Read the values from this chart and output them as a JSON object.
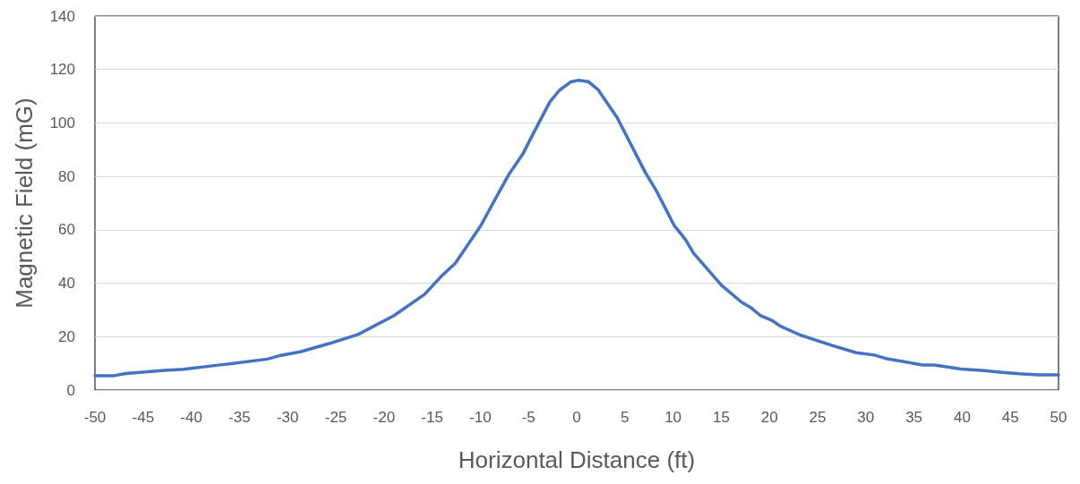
{
  "chart_data": {
    "type": "line",
    "xlabel": "Horizontal Distance (ft)",
    "ylabel": "Magnetic Field (mG)",
    "x": [
      -50,
      -48,
      -46.8,
      -44.8,
      -42.8,
      -40.8,
      -36.8,
      -32.1,
      -30.7,
      -28.7,
      -25.7,
      -22.7,
      -19,
      -15.8,
      -14,
      -12.6,
      -10,
      -8,
      -7,
      -5.6,
      -4.6,
      -2.8,
      -1.8,
      -0.6,
      0.2,
      1.2,
      2.2,
      4.2,
      7.1,
      8.3,
      10.1,
      11.3,
      12.1,
      15,
      17.1,
      18.1,
      19.1,
      20.2,
      21.2,
      23.2,
      26.5,
      29,
      30.9,
      32.2,
      35.9,
      37.1,
      39.9,
      42.3,
      43.9,
      45.9,
      47.9,
      50
    ],
    "series": [
      {
        "color": "#4472c4",
        "values": [
          5.4,
          5.4,
          6.2,
          6.8,
          7.4,
          7.8,
          9.5,
          11.6,
          13,
          14.3,
          17.4,
          20.8,
          27.8,
          35.8,
          42.8,
          47.5,
          61.3,
          74.5,
          81,
          88.3,
          95.4,
          107.8,
          112.2,
          115.4,
          116,
          115.5,
          112.5,
          102,
          81.6,
          74.4,
          61.7,
          56.3,
          51.4,
          39.3,
          32.9,
          30.8,
          27.8,
          26.2,
          23.8,
          20.6,
          16.7,
          14,
          13.1,
          11.7,
          9.4,
          9.4,
          7.9,
          7.3,
          6.7,
          6.1,
          5.7,
          5.7
        ]
      }
    ],
    "xlim": [
      -50,
      50
    ],
    "xticks": [
      -50,
      -45,
      -40,
      -35,
      -30,
      -25,
      -20,
      -15,
      -10,
      -5,
      0,
      5,
      10,
      15,
      20,
      25,
      30,
      35,
      40,
      45,
      50
    ],
    "ylim": [
      0,
      140
    ],
    "yticks": [
      0,
      20,
      40,
      60,
      80,
      100,
      120,
      140
    ],
    "grid": "y",
    "marker": "none",
    "line_style": "solid"
  }
}
